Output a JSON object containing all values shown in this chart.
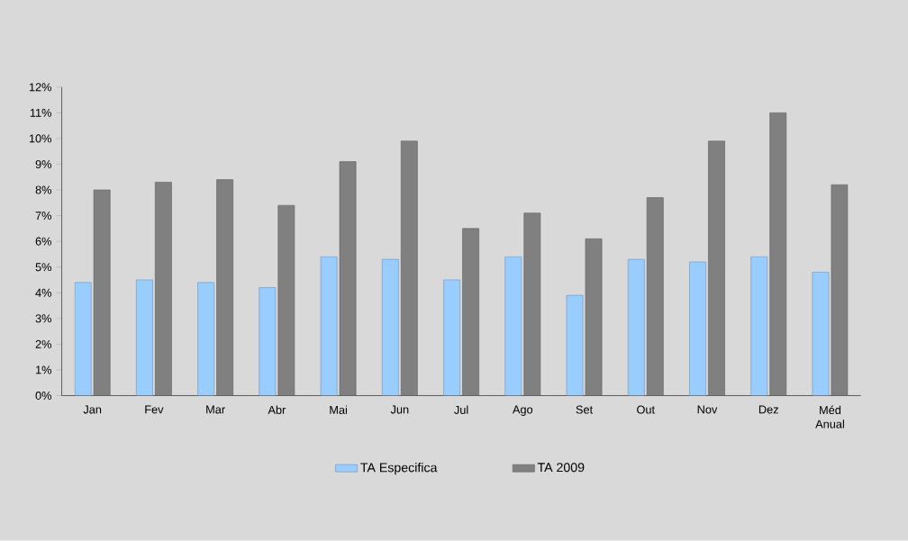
{
  "chart_data": {
    "type": "bar",
    "categories": [
      "Jan",
      "Fev",
      "Mar",
      "Abr",
      "Mai",
      "Jun",
      "Jul",
      "Ago",
      "Set",
      "Out",
      "Nov",
      "Dez",
      "Méd Anual"
    ],
    "series": [
      {
        "name": "TA Especifica",
        "color": "#99ccff",
        "values": [
          4.4,
          4.5,
          4.4,
          4.2,
          5.4,
          5.3,
          4.5,
          5.4,
          3.9,
          5.3,
          5.2,
          5.4,
          4.8
        ]
      },
      {
        "name": "TA 2009",
        "color": "#808080",
        "values": [
          8.0,
          8.3,
          8.4,
          7.4,
          9.1,
          9.9,
          6.5,
          7.1,
          6.1,
          7.7,
          9.9,
          11.0,
          8.2
        ]
      }
    ],
    "ylim": [
      0,
      12
    ],
    "yticks": [
      {
        "value": 0,
        "label": "0%"
      },
      {
        "value": 1,
        "label": "1%"
      },
      {
        "value": 2,
        "label": "2%"
      },
      {
        "value": 3,
        "label": "3%"
      },
      {
        "value": 4,
        "label": "4%"
      },
      {
        "value": 5,
        "label": "5%"
      },
      {
        "value": 6,
        "label": "6%"
      },
      {
        "value": 7,
        "label": "7%"
      },
      {
        "value": 8,
        "label": "8%"
      },
      {
        "value": 9,
        "label": "9%"
      },
      {
        "value": 10,
        "label": "10%"
      },
      {
        "value": 11,
        "label": "11%"
      },
      {
        "value": 12,
        "label": "12%"
      }
    ],
    "grid": false,
    "legend": "bottom"
  }
}
